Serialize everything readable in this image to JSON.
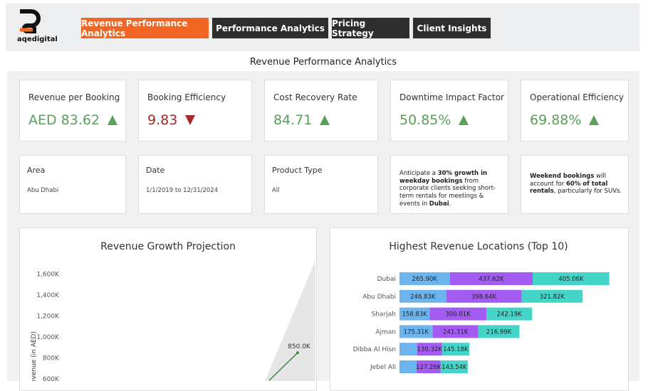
{
  "header": {
    "logo_text": "aqedigital",
    "tabs": [
      "Revenue Performance Analytics",
      "Performance Analytics",
      "Pricing Strategy",
      "Client Insights"
    ],
    "active_tab": 0
  },
  "page_title": "Revenue Performance Analytics",
  "kpis": [
    {
      "label": "Revenue per Booking",
      "value": "AED 83.62",
      "trend": "up",
      "color": "#5c9e5c"
    },
    {
      "label": "Booking Efficiency",
      "value": "9.83",
      "trend": "down",
      "color": "#a8282c"
    },
    {
      "label": "Cost Recovery Rate",
      "value": "84.71",
      "trend": "up",
      "color": "#5c9e5c"
    },
    {
      "label": "Downtime Impact Factor",
      "value": "50.85%",
      "trend": "up",
      "color": "#5c9e5c"
    },
    {
      "label": "Operational Efficiency",
      "value": "69.88%",
      "trend": "up",
      "color": "#5c9e5c"
    }
  ],
  "filters": [
    {
      "label": "Area",
      "value": "Abu Dhabi"
    },
    {
      "label": "Date",
      "value": "1/1/2019 to 12/31/2024"
    },
    {
      "label": "Product Type",
      "value": "All"
    }
  ],
  "notes": [
    [
      {
        "text": "Anticipate a ",
        "bold": false
      },
      {
        "text": "30% growth in weekday bookings",
        "bold": true
      },
      {
        "text": " from corporate clients seeking short-term rentals for meetings & events in ",
        "bold": false
      },
      {
        "text": "Dubai",
        "bold": true
      },
      {
        "text": ".",
        "bold": false
      }
    ],
    [
      {
        "text": "Weekend bookings",
        "bold": true
      },
      {
        "text": " will account for ",
        "bold": false
      },
      {
        "text": "60% of total rentals",
        "bold": true
      },
      {
        "text": ", particularly for SUVs.",
        "bold": false
      }
    ]
  ],
  "chart_data": [
    {
      "type": "line",
      "title": "Revenue Growth Projection",
      "y_label": "Revenue (in AED)",
      "categories": [
        null,
        null
      ],
      "values": [
        586,
        850
      ],
      "value_labels": [
        null,
        "850.0K"
      ],
      "color": "#3d8b3d",
      "ylim": [
        600,
        1700
      ],
      "yticks": [
        {
          "value": 600,
          "label": "600K"
        },
        {
          "value": 800,
          "label": "800K"
        },
        {
          "value": 1000,
          "label": "1,000K"
        },
        {
          "value": 1200,
          "label": "1,200K"
        },
        {
          "value": 1400,
          "label": "1,400K"
        },
        {
          "value": 1600,
          "label": "1,600K"
        }
      ]
    },
    {
      "type": "stacked-bar-horizontal",
      "title": "Highest Revenue Locations (Top 10)",
      "categories": [
        "Dubai",
        "Abu Dhabi",
        "Sharjah",
        "Ajman",
        "Dibba Al Hisn",
        "Jebel Ali"
      ],
      "xlim": [
        0,
        1200
      ],
      "series": [
        {
          "color": "#6cb4ee",
          "values": [
            265.9,
            246.83,
            158.83,
            175.31,
            94,
            90
          ],
          "value_labels": [
            "265.90K",
            "246.83K",
            "158.83K",
            "175.31K",
            null,
            null
          ]
        },
        {
          "color": "#a25cf2",
          "values": [
            437.62,
            398.64,
            300.01,
            241.31,
            130.32,
            127.26
          ],
          "value_labels": [
            "437.62K",
            "398.64K",
            "300.01K",
            "241.31K",
            "130.32K",
            "127.26K"
          ]
        },
        {
          "color": "#44d4c8",
          "values": [
            405.06,
            321.82,
            242.19,
            216.99,
            145.18,
            143.54
          ],
          "value_labels": [
            "405.06K",
            "321.82K",
            "242.19K",
            "216.99K",
            "145.18K",
            "143.54K"
          ]
        }
      ]
    }
  ]
}
